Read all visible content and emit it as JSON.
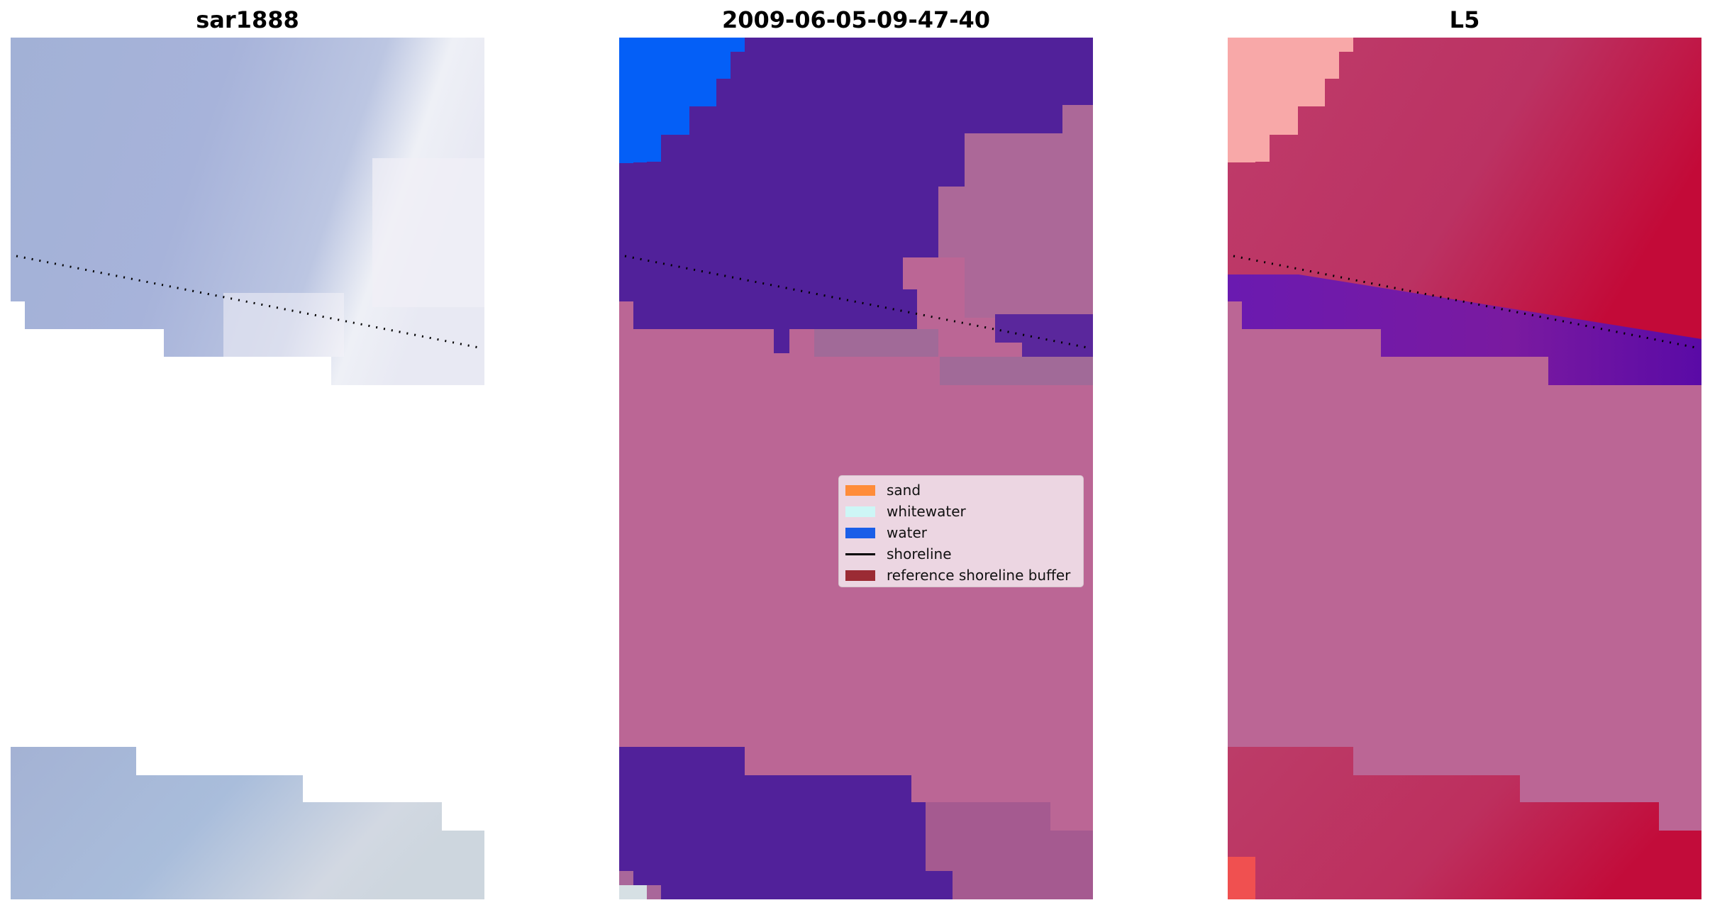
{
  "panels": [
    {
      "title": "sar1888"
    },
    {
      "title": "2009-06-05-09-47-40"
    },
    {
      "title": "L5"
    }
  ],
  "legend": {
    "items": [
      {
        "label": "sand",
        "color": "#ff8c3a",
        "kind": "patch"
      },
      {
        "label": "whitewater",
        "color": "#cdf6f6",
        "kind": "patch"
      },
      {
        "label": "water",
        "color": "#1a5ee8",
        "kind": "patch"
      },
      {
        "label": "shoreline",
        "color": "#000000",
        "kind": "line"
      },
      {
        "label": "reference shoreline buffer",
        "color": "#9b2b34",
        "kind": "patch"
      }
    ]
  },
  "colors": {
    "image_blue": "#a4b3d8",
    "image_light": "#d8dbe8",
    "class_water_purple": "#51219a",
    "class_water_blue": "#045ff7",
    "class_land_pink": "#bb6695",
    "class_land_mid": "#a86a98",
    "index_red": "#b83564",
    "index_red_dark": "#c0103d",
    "index_purple": "#6612a8",
    "index_pink_light": "#f8a8a8",
    "shoreline_dots": "#000000"
  }
}
